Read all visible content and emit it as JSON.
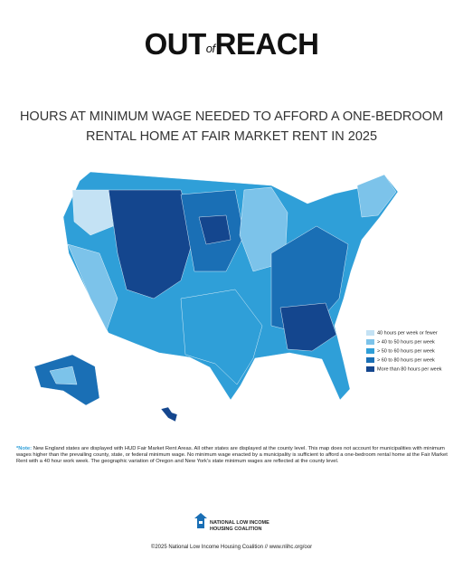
{
  "header": {
    "logo_out": "OUT",
    "logo_of": "of",
    "logo_reach": "REACH",
    "title_lines": [
      "HOURS AT MINIMUM WAGE NEEDED TO AFFORD A ONE-BEDROOM",
      "RENTAL HOME AT FAIR MARKET RENT IN 2025"
    ]
  },
  "legend": {
    "items": [
      {
        "label": "40 hours per week or fewer",
        "color": "#c4e2f4"
      },
      {
        "label": "> 40 to 50 hours per week",
        "color": "#7cc3ea"
      },
      {
        "label": "> 50 to 60 hours per week",
        "color": "#2f9fd8"
      },
      {
        "label": "> 60 to 80 hours per week",
        "color": "#1a6fb5"
      },
      {
        "label": "More than 80 hours per week",
        "color": "#14468e"
      }
    ]
  },
  "note": {
    "label": "*Note:",
    "text": "New England states are displayed with HUD Fair Market Rent Areas. All other states are displayed at the county level. This map does not account for municipalities with minimum wages higher than the prevailing county, state, or federal minimum wage. No minimum wage enacted by a municipality is sufficient to afford a one-bedroom rental home at the Fair Market Rent with a 40 hour work week. The geographic variation of Oregon and New York's state minimum wages are reflected at the county level."
  },
  "org": {
    "name_lines": [
      "NATIONAL LOW INCOME",
      "HOUSING COALITION"
    ]
  },
  "footer": "©2025 National Low Income Housing Coalition // www.nlihc.org/oor"
}
